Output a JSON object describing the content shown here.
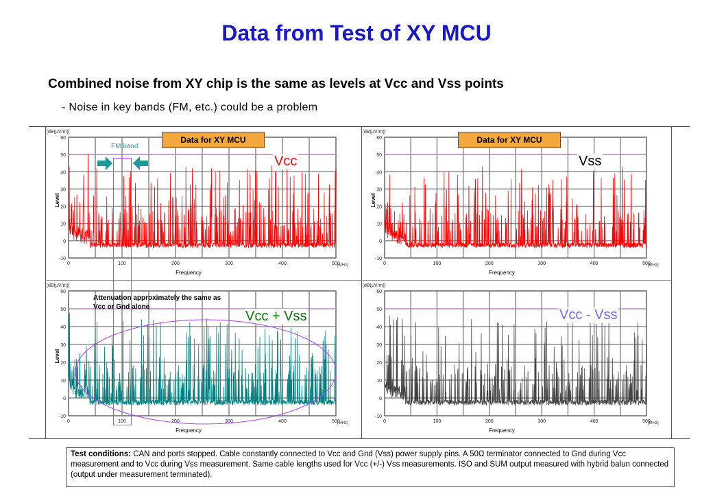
{
  "title": "Data from Test of XY MCU",
  "bullet": "Combined noise from XY chip is the same as levels at Vcc and Vss points",
  "sub": "- Noise in key bands (FM, etc.) could be a problem",
  "badge_label": "Data for XY MCU",
  "fm_band_label": "FM band",
  "attenuation_note": "Attenuation  approximately the same as Vcc or Gnd alone",
  "test_conditions": {
    "label": "Test conditions:",
    "text": " CAN and ports stopped. Cable constantly connected to Vcc and Gnd (Vss) power supply pins. A 50Ω terminator connected to Gnd during Vcc measurement  and to Vcc during Vss measurement.  Same cable lengths used for Vcc (+/-) Vss measurements.  ISO  and SUM output measured with hybrid balun connected (output under measurement  terminated)."
  },
  "chart_data": [
    {
      "type": "line",
      "series": [
        {
          "name": "Vcc",
          "color": "#ff0000",
          "noise_seed": 11
        }
      ],
      "xlabel": "Frequency",
      "ylabel": "Level",
      "units_y": "[dB(μV/m)]",
      "units_x": "[MHz]",
      "xlim": [
        0,
        500
      ],
      "ylim": [
        -10,
        60
      ],
      "xticks": [
        "0",
        "100",
        "200",
        "300",
        "400",
        "500"
      ],
      "yticks": [
        "60",
        "50",
        "40",
        "30",
        "20",
        "10",
        "0",
        "-10"
      ],
      "reference_line": 50,
      "grid": true
    },
    {
      "type": "line",
      "series": [
        {
          "name": "Vss",
          "color": "#ff0000",
          "noise_seed": 23
        }
      ],
      "xlabel": "Frequency",
      "ylabel": "Level",
      "units_y": "[dB(μV/m)]",
      "units_x": "[MHz]",
      "xlim": [
        0,
        500
      ],
      "ylim": [
        -10,
        60
      ],
      "xticks": [
        "0",
        "100",
        "200",
        "300",
        "400",
        "500"
      ],
      "yticks": [
        "60",
        "50",
        "40",
        "30",
        "20",
        "10",
        "0",
        "-10"
      ],
      "reference_line": 50,
      "grid": true
    },
    {
      "type": "line",
      "series": [
        {
          "name": "Vcc + Vss",
          "color": "#008080",
          "noise_seed": 37
        }
      ],
      "xlabel": "Frequency",
      "ylabel": "Level",
      "units_y": "[dB(μV/m)]",
      "units_x": "[MHz]",
      "xlim": [
        0,
        500
      ],
      "ylim": [
        -10,
        60
      ],
      "xticks": [
        "0",
        "100",
        "200",
        "300",
        "400",
        "500"
      ],
      "yticks": [
        "60",
        "50",
        "40",
        "30",
        "20",
        "10",
        "0",
        "-10"
      ],
      "reference_line": 50,
      "grid": true
    },
    {
      "type": "line",
      "series": [
        {
          "name": "Vcc - Vss",
          "color": "#444444",
          "noise_seed": 53
        }
      ],
      "xlabel": "Frequency",
      "ylabel": "",
      "units_y": "[dB(μV/m)]",
      "units_x": "[MHz]",
      "xlim": [
        0,
        500
      ],
      "ylim": [
        -10,
        60
      ],
      "xticks": [
        "0",
        "100",
        "200",
        "300",
        "400",
        "500"
      ],
      "yticks": [
        "60",
        "50",
        "40",
        "30",
        "20",
        "10",
        "0",
        "-10"
      ],
      "reference_line": 50,
      "grid": true
    }
  ],
  "colors": {
    "title": "#1919c8",
    "badge": "#f3a73d",
    "vcc_plus_vss_label": "#008000",
    "vcc_minus_vss_label": "#6b6bff",
    "annotation": "#b040ff",
    "fm_arrows": "#1a9a9a"
  }
}
